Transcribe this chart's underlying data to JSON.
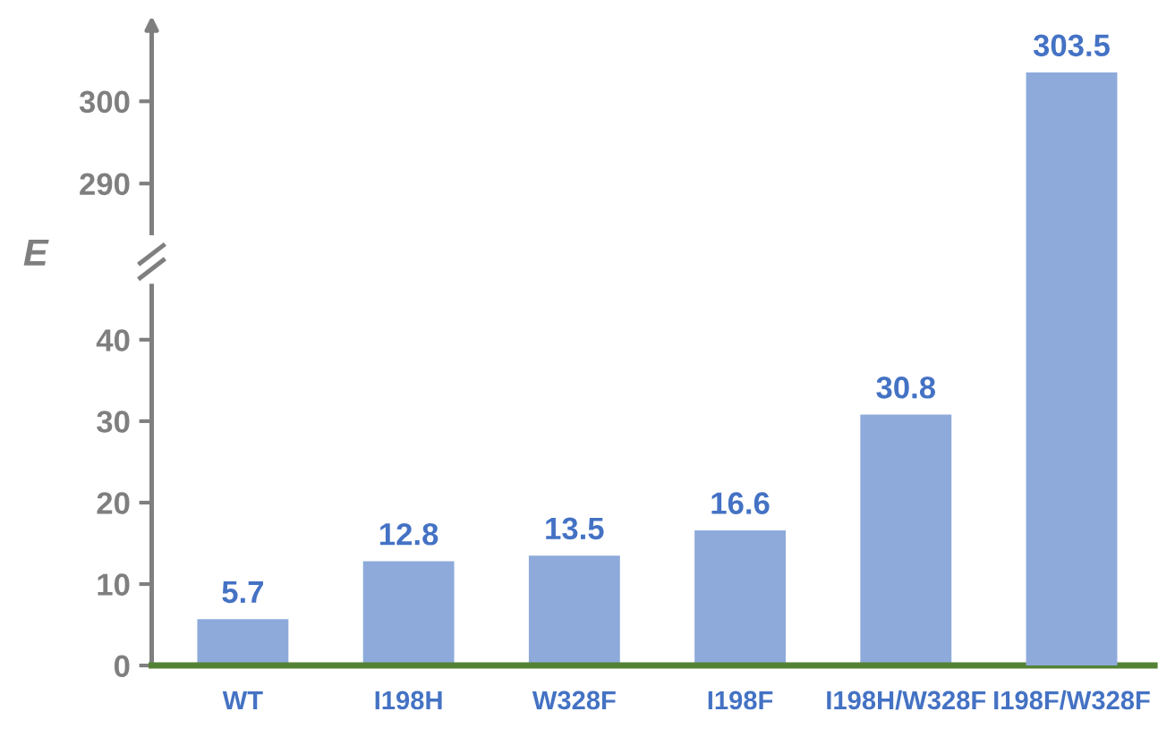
{
  "chart_data": [
    {
      "type": "bar",
      "ylabel": "E",
      "values": [
        null,
        null,
        null,
        null,
        null,
        303.5
      ],
      "value_labels": [
        null,
        null,
        null,
        null,
        null,
        "303.5"
      ],
      "color": "#8eaadb",
      "ylim": [
        284,
        309
      ],
      "yticks": [
        290,
        300
      ],
      "tick_labels": "y",
      "grid": false,
      "legend": false
    },
    {
      "type": "bar",
      "categories": [
        "WT",
        "I198H",
        "W328F",
        "I198F",
        "I198H/W328F",
        "I198F/W328F"
      ],
      "values": [
        5.7,
        12.8,
        13.5,
        16.6,
        30.8,
        null
      ],
      "value_labels": [
        "5.7",
        "12.8",
        "13.5",
        "16.6",
        "30.8",
        null
      ],
      "color": "#8eaadb",
      "ylim": [
        0,
        46.6
      ],
      "yticks": [
        0,
        10,
        20,
        30,
        40
      ],
      "grid": false,
      "legend": false
    }
  ]
}
